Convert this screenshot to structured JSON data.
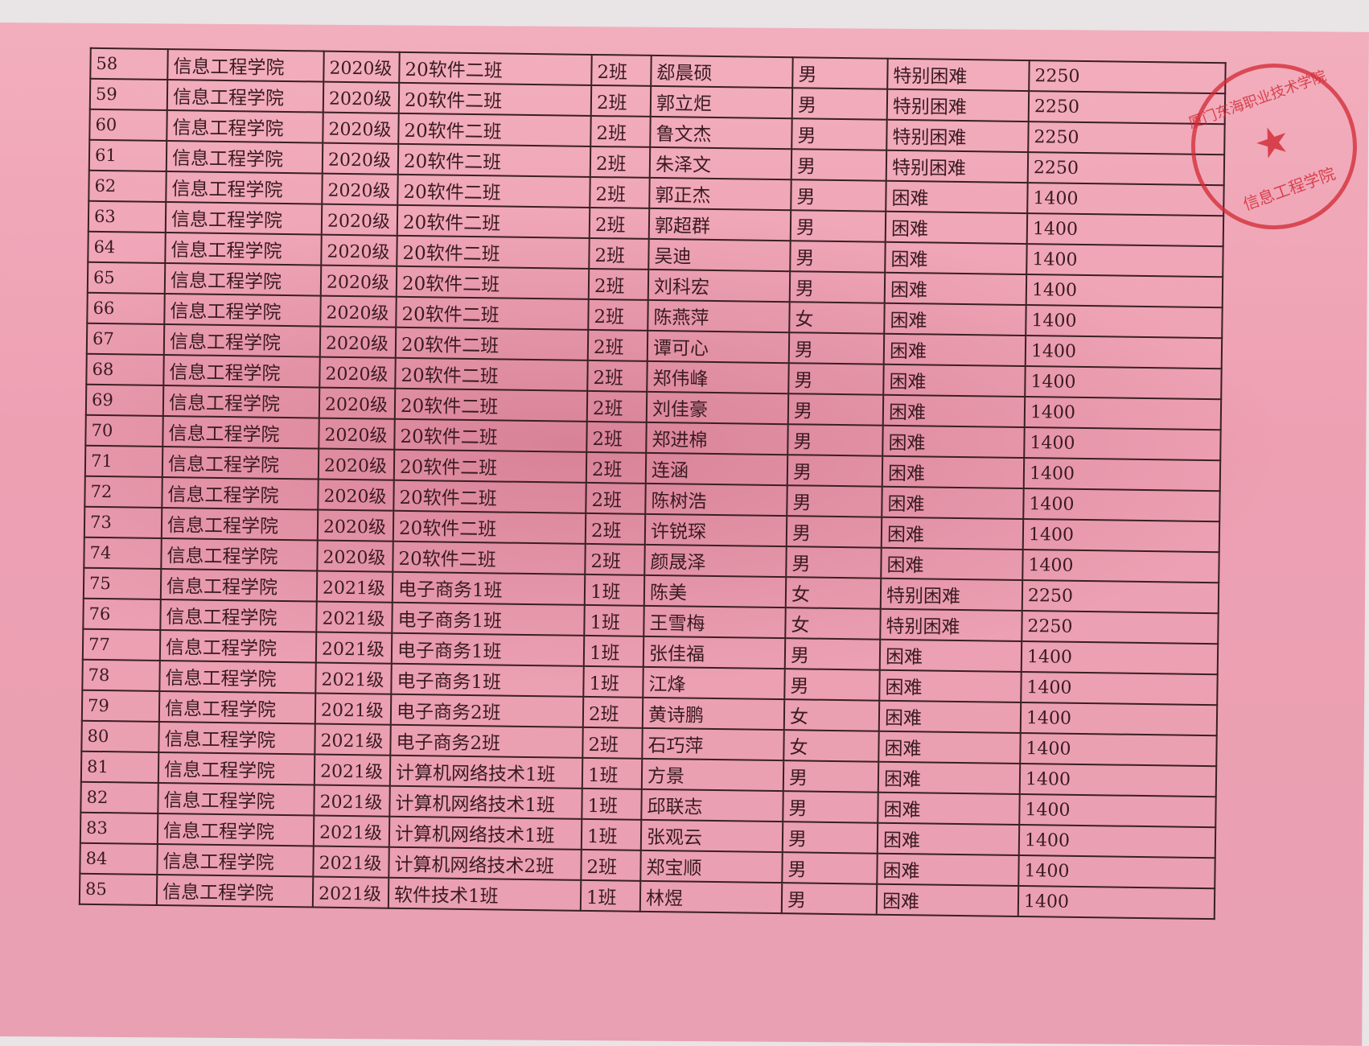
{
  "stamp": {
    "outer_text": "厦门东海职业技术学院",
    "inner_text": "信息工程学院",
    "color": "#d22832"
  },
  "rows": [
    [
      "58",
      "信息工程学院",
      "2020级",
      "20软件二班",
      "2班",
      "郄晨硕",
      "男",
      "特别困难",
      "2250"
    ],
    [
      "59",
      "信息工程学院",
      "2020级",
      "20软件二班",
      "2班",
      "郭立炬",
      "男",
      "特别困难",
      "2250"
    ],
    [
      "60",
      "信息工程学院",
      "2020级",
      "20软件二班",
      "2班",
      "鲁文杰",
      "男",
      "特别困难",
      "2250"
    ],
    [
      "61",
      "信息工程学院",
      "2020级",
      "20软件二班",
      "2班",
      "朱泽文",
      "男",
      "特别困难",
      "2250"
    ],
    [
      "62",
      "信息工程学院",
      "2020级",
      "20软件二班",
      "2班",
      "郭正杰",
      "男",
      "困难",
      "1400"
    ],
    [
      "63",
      "信息工程学院",
      "2020级",
      "20软件二班",
      "2班",
      "郭超群",
      "男",
      "困难",
      "1400"
    ],
    [
      "64",
      "信息工程学院",
      "2020级",
      "20软件二班",
      "2班",
      "吴迪",
      "男",
      "困难",
      "1400"
    ],
    [
      "65",
      "信息工程学院",
      "2020级",
      "20软件二班",
      "2班",
      "刘科宏",
      "男",
      "困难",
      "1400"
    ],
    [
      "66",
      "信息工程学院",
      "2020级",
      "20软件二班",
      "2班",
      "陈燕萍",
      "女",
      "困难",
      "1400"
    ],
    [
      "67",
      "信息工程学院",
      "2020级",
      "20软件二班",
      "2班",
      "谭可心",
      "男",
      "困难",
      "1400"
    ],
    [
      "68",
      "信息工程学院",
      "2020级",
      "20软件二班",
      "2班",
      "郑伟峰",
      "男",
      "困难",
      "1400"
    ],
    [
      "69",
      "信息工程学院",
      "2020级",
      "20软件二班",
      "2班",
      "刘佳豪",
      "男",
      "困难",
      "1400"
    ],
    [
      "70",
      "信息工程学院",
      "2020级",
      "20软件二班",
      "2班",
      "郑进棉",
      "男",
      "困难",
      "1400"
    ],
    [
      "71",
      "信息工程学院",
      "2020级",
      "20软件二班",
      "2班",
      "连涵",
      "男",
      "困难",
      "1400"
    ],
    [
      "72",
      "信息工程学院",
      "2020级",
      "20软件二班",
      "2班",
      "陈树浩",
      "男",
      "困难",
      "1400"
    ],
    [
      "73",
      "信息工程学院",
      "2020级",
      "20软件二班",
      "2班",
      "许锐琛",
      "男",
      "困难",
      "1400"
    ],
    [
      "74",
      "信息工程学院",
      "2020级",
      "20软件二班",
      "2班",
      "颜晟泽",
      "男",
      "困难",
      "1400"
    ],
    [
      "75",
      "信息工程学院",
      "2021级",
      "电子商务1班",
      "1班",
      "陈美",
      "女",
      "特别困难",
      "2250"
    ],
    [
      "76",
      "信息工程学院",
      "2021级",
      "电子商务1班",
      "1班",
      "王雪梅",
      "女",
      "特别困难",
      "2250"
    ],
    [
      "77",
      "信息工程学院",
      "2021级",
      "电子商务1班",
      "1班",
      "张佳福",
      "男",
      "困难",
      "1400"
    ],
    [
      "78",
      "信息工程学院",
      "2021级",
      "电子商务1班",
      "1班",
      "江烽",
      "男",
      "困难",
      "1400"
    ],
    [
      "79",
      "信息工程学院",
      "2021级",
      "电子商务2班",
      "2班",
      "黄诗鹏",
      "女",
      "困难",
      "1400"
    ],
    [
      "80",
      "信息工程学院",
      "2021级",
      "电子商务2班",
      "2班",
      "石巧萍",
      "女",
      "困难",
      "1400"
    ],
    [
      "81",
      "信息工程学院",
      "2021级",
      "计算机网络技术1班",
      "1班",
      "方景",
      "男",
      "困难",
      "1400"
    ],
    [
      "82",
      "信息工程学院",
      "2021级",
      "计算机网络技术1班",
      "1班",
      "邱联志",
      "男",
      "困难",
      "1400"
    ],
    [
      "83",
      "信息工程学院",
      "2021级",
      "计算机网络技术1班",
      "1班",
      "张观云",
      "男",
      "困难",
      "1400"
    ],
    [
      "84",
      "信息工程学院",
      "2021级",
      "计算机网络技术2班",
      "2班",
      "郑宝顺",
      "男",
      "困难",
      "1400"
    ],
    [
      "85",
      "信息工程学院",
      "2021级",
      "软件技术1班",
      "1班",
      "林煜",
      "男",
      "困难",
      "1400"
    ]
  ]
}
